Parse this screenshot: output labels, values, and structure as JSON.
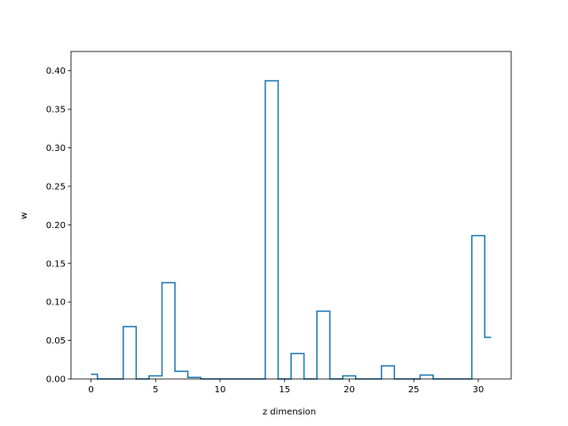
{
  "chart_data": {
    "type": "line",
    "drawstyle": "steps-mid",
    "title": "",
    "xlabel": "z dimension",
    "ylabel": "w",
    "xlim": [
      -1.55,
      32.55
    ],
    "ylim": [
      0,
      0.425
    ],
    "xticks": [
      0,
      5,
      10,
      15,
      20,
      25,
      30
    ],
    "xtick_labels": [
      "0",
      "5",
      "10",
      "15",
      "20",
      "25",
      "30"
    ],
    "yticks": [
      0.0,
      0.05,
      0.1,
      0.15,
      0.2,
      0.25,
      0.3,
      0.35,
      0.4
    ],
    "ytick_labels": [
      "0.00",
      "0.05",
      "0.10",
      "0.15",
      "0.20",
      "0.25",
      "0.30",
      "0.35",
      "0.40"
    ],
    "grid": false,
    "color": "#1f77b4",
    "series": [
      {
        "x": [
          0,
          1,
          2,
          3,
          4,
          5,
          6,
          7,
          8,
          9,
          10,
          11,
          12,
          13,
          14,
          15,
          16,
          17,
          18,
          19,
          20,
          21,
          22,
          23,
          24,
          25,
          26,
          27,
          28,
          29,
          30,
          31
        ],
        "values": [
          0.006,
          0.0,
          0.0,
          0.068,
          0.0,
          0.004,
          0.125,
          0.01,
          0.002,
          0.0,
          0.0,
          0.0,
          0.0,
          0.0,
          0.387,
          0.0,
          0.033,
          0.0,
          0.088,
          0.0,
          0.004,
          0.0,
          0.0,
          0.017,
          0.0,
          0.0,
          0.005,
          0.0,
          0.0,
          0.0,
          0.186,
          0.054
        ]
      }
    ]
  }
}
